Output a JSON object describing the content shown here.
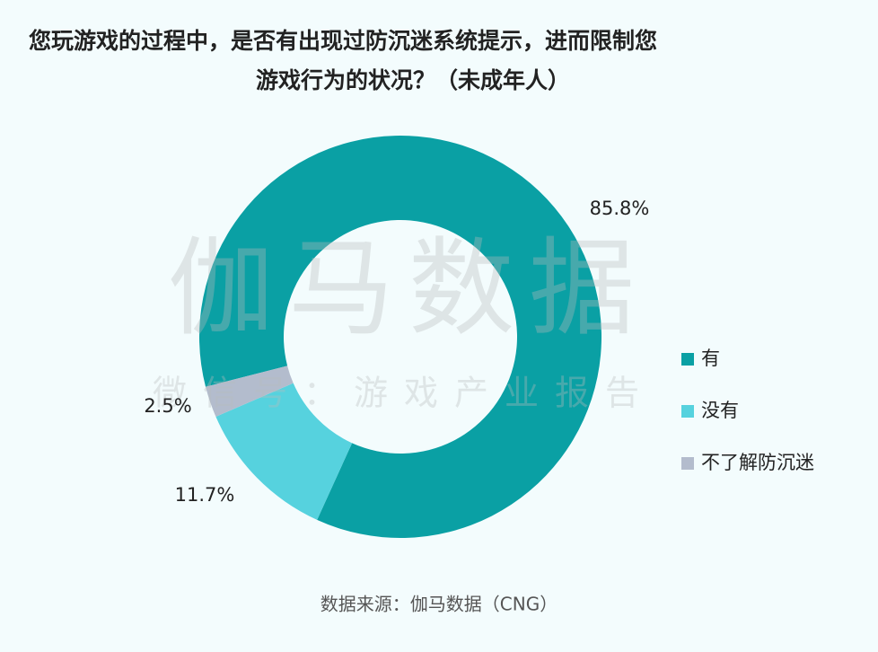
{
  "chart_data": {
    "type": "donut",
    "title": [
      "您玩游戏的过程中，是否有出现过防沉迷系统提示，进而限制您",
      "游戏行为的状况？（未成年人）"
    ],
    "categories": [
      "有",
      "没有",
      "不了解防沉迷"
    ],
    "values": [
      85.8,
      11.7,
      2.5
    ],
    "value_labels": [
      "85.8%",
      "11.7%",
      "2.5%"
    ],
    "colors": [
      "#0aa0a4",
      "#56d2de",
      "#b3bccd"
    ],
    "legend": "right",
    "watermark": [
      "伽马数据",
      "微信号：游戏产业报告"
    ],
    "source": "数据来源：伽马数据（CNG）"
  }
}
